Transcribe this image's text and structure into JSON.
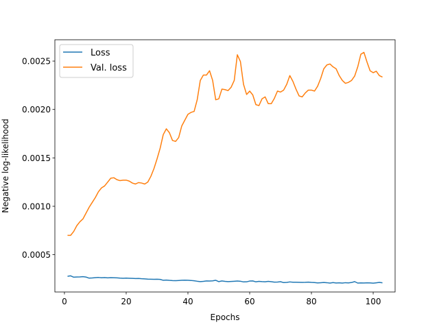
{
  "chart_data": {
    "type": "line",
    "xlabel": "Epochs",
    "ylabel": "Negative log-likelihood",
    "xlim": [
      -3.1,
      107.1
    ],
    "ylim": [
      0.000115,
      0.00272
    ],
    "x_ticks": [
      0,
      20,
      40,
      60,
      80,
      100
    ],
    "y_ticks": [
      0.0005,
      0.001,
      0.0015,
      0.002,
      0.0025
    ],
    "y_tick_labels": [
      "0.0005",
      "0.0010",
      "0.0015",
      "0.0020",
      "0.0025"
    ],
    "grid": false,
    "legend": {
      "position": "top-left",
      "entries": [
        "Loss",
        "Val. loss"
      ]
    },
    "series": [
      {
        "name": "Loss",
        "color": "#1f77b4",
        "x": [
          1,
          2,
          3,
          4,
          5,
          6,
          7,
          8,
          9,
          10,
          11,
          12,
          13,
          14,
          15,
          16,
          17,
          18,
          19,
          20,
          21,
          22,
          23,
          24,
          25,
          26,
          27,
          28,
          29,
          30,
          31,
          32,
          33,
          34,
          35,
          36,
          37,
          38,
          39,
          40,
          41,
          42,
          43,
          44,
          45,
          46,
          47,
          48,
          49,
          50,
          51,
          52,
          53,
          54,
          55,
          56,
          57,
          58,
          59,
          60,
          61,
          62,
          63,
          64,
          65,
          66,
          67,
          68,
          69,
          70,
          71,
          72,
          73,
          74,
          75,
          76,
          77,
          78,
          79,
          80,
          81,
          82,
          83,
          84,
          85,
          86,
          87,
          88,
          89,
          90,
          91,
          92,
          93,
          94,
          95,
          96,
          97,
          98,
          99,
          100,
          101,
          102,
          103
        ],
        "values": [
          0.000277,
          0.000282,
          0.000268,
          0.00027,
          0.000271,
          0.000273,
          0.000269,
          0.000258,
          0.00026,
          0.000263,
          0.000265,
          0.000262,
          0.000264,
          0.000261,
          0.000263,
          0.000262,
          0.000261,
          0.000258,
          0.000257,
          0.000258,
          0.000257,
          0.000256,
          0.000254,
          0.000255,
          0.000252,
          0.00025,
          0.000248,
          0.000247,
          0.000246,
          0.000247,
          0.000245,
          0.000236,
          0.000238,
          0.000235,
          0.000233,
          0.000232,
          0.000234,
          0.000236,
          0.000237,
          0.000236,
          0.000234,
          0.000231,
          0.000226,
          0.000222,
          0.000225,
          0.000229,
          0.000228,
          0.00023,
          0.000236,
          0.000222,
          0.000229,
          0.000225,
          0.000222,
          0.000224,
          0.000226,
          0.000228,
          0.000226,
          0.000219,
          0.00022,
          0.000228,
          0.000229,
          0.00022,
          0.000225,
          0.000222,
          0.00022,
          0.000225,
          0.000221,
          0.000217,
          0.000218,
          0.000221,
          0.000212,
          0.000214,
          0.000219,
          0.000216,
          0.000216,
          0.000215,
          0.000214,
          0.000215,
          0.000217,
          0.000214,
          0.000212,
          0.000209,
          0.000211,
          0.000213,
          0.000211,
          0.000207,
          0.000212,
          0.000208,
          0.00021,
          0.000207,
          0.000211,
          0.000209,
          0.000213,
          0.000222,
          0.000207,
          0.000209,
          0.000208,
          0.00021,
          0.000209,
          0.000206,
          0.00021,
          0.000214,
          0.00021
        ]
      },
      {
        "name": "Val. loss",
        "color": "#ff7f0e",
        "x": [
          1,
          2,
          3,
          4,
          5,
          6,
          7,
          8,
          9,
          10,
          11,
          12,
          13,
          14,
          15,
          16,
          17,
          18,
          19,
          20,
          21,
          22,
          23,
          24,
          25,
          26,
          27,
          28,
          29,
          30,
          31,
          32,
          33,
          34,
          35,
          36,
          37,
          38,
          39,
          40,
          41,
          42,
          43,
          44,
          45,
          46,
          47,
          48,
          49,
          50,
          51,
          52,
          53,
          54,
          55,
          56,
          57,
          58,
          59,
          60,
          61,
          62,
          63,
          64,
          65,
          66,
          67,
          68,
          69,
          70,
          71,
          72,
          73,
          74,
          75,
          76,
          77,
          78,
          79,
          80,
          81,
          82,
          83,
          84,
          85,
          86,
          87,
          88,
          89,
          90,
          91,
          92,
          93,
          94,
          95,
          96,
          97,
          98,
          99,
          100,
          101,
          102,
          103
        ],
        "values": [
          0.0007,
          0.0007,
          0.00074,
          0.0008,
          0.00084,
          0.00087,
          0.00093,
          0.00099,
          0.00104,
          0.00109,
          0.00115,
          0.00119,
          0.00121,
          0.00125,
          0.00129,
          0.001295,
          0.001275,
          0.001265,
          0.00127,
          0.00127,
          0.00126,
          0.00124,
          0.00123,
          0.001245,
          0.00124,
          0.00123,
          0.00125,
          0.00131,
          0.00139,
          0.00149,
          0.0016,
          0.00174,
          0.0018,
          0.00176,
          0.00168,
          0.00167,
          0.00171,
          0.00183,
          0.00189,
          0.00195,
          0.00197,
          0.00198,
          0.0021,
          0.0023,
          0.002355,
          0.002355,
          0.0024,
          0.0023,
          0.0021,
          0.00211,
          0.00221,
          0.002205,
          0.002195,
          0.00223,
          0.0023,
          0.002565,
          0.002495,
          0.00226,
          0.002155,
          0.00219,
          0.00215,
          0.00205,
          0.00204,
          0.00211,
          0.00213,
          0.00206,
          0.00206,
          0.002115,
          0.00219,
          0.00218,
          0.0022,
          0.00226,
          0.00235,
          0.00229,
          0.00221,
          0.00214,
          0.00213,
          0.00217,
          0.0022,
          0.0022,
          0.00219,
          0.00224,
          0.00232,
          0.00242,
          0.00246,
          0.00247,
          0.00244,
          0.00242,
          0.00235,
          0.0023,
          0.00227,
          0.00228,
          0.0023,
          0.002345,
          0.00244,
          0.00257,
          0.00259,
          0.00249,
          0.0024,
          0.00238,
          0.002395,
          0.00235,
          0.002335
        ]
      }
    ]
  }
}
